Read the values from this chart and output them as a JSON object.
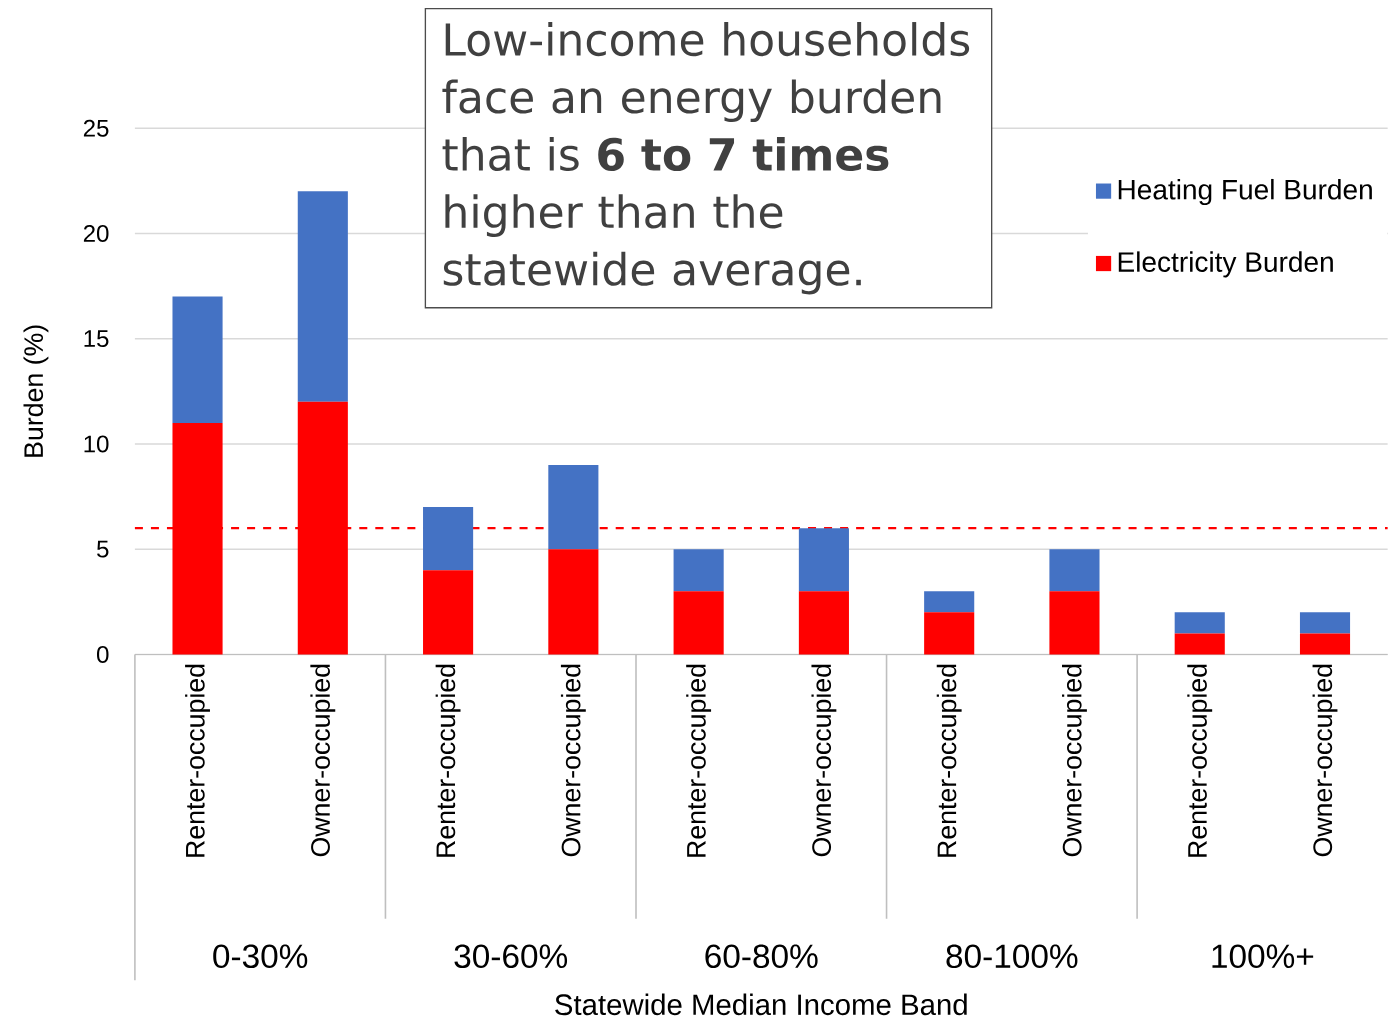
{
  "chart_data": {
    "type": "bar",
    "stacked": true,
    "xlabel": "Statewide  Median Income Band",
    "ylabel": "Burden (%)",
    "categories": [
      "Renter-occupied",
      "Owner-occupied",
      "Renter-occupied",
      "Owner-occupied",
      "Renter-occupied",
      "Owner-occupied",
      "Renter-occupied",
      "Owner-occupied",
      "Renter-occupied",
      "Owner-occupied"
    ],
    "series": [
      {
        "name": "Electricity Burden",
        "color": "#ff0000",
        "values": [
          11,
          12,
          4,
          5,
          3,
          3,
          2,
          3,
          1,
          1
        ]
      },
      {
        "name": "Heating Fuel Burden",
        "color": "#4472c4",
        "values": [
          6,
          10,
          3,
          4,
          2,
          3,
          1,
          2,
          1,
          1
        ]
      }
    ],
    "ylim": [
      0,
      25
    ],
    "yticks": [
      0,
      5,
      10,
      15,
      20,
      25
    ],
    "grid": "y",
    "legend": "top right",
    "ref_lines": [
      {
        "axis": "y",
        "value": 6,
        "color": "#ff0000",
        "line_style": "dashed"
      }
    ],
    "annotations": [
      "Low-income households face an energy burden that is **6 to 7 times** higher than the statewide average.",
      "0-30%",
      "30-60%",
      "60-80%",
      "80-100%",
      "100%+"
    ]
  }
}
